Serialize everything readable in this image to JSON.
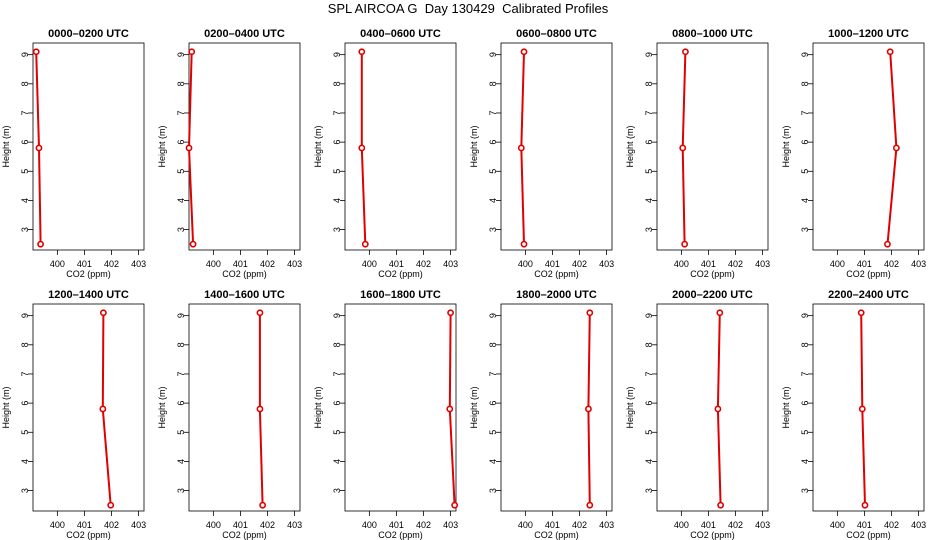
{
  "page": {
    "title": "SPL AIRCOA G  Day 130429  Calibrated Profiles"
  },
  "colors": {
    "profile_line": "#e00000",
    "marker": "#e00000",
    "axis": "#000000"
  },
  "chart_data": [
    {
      "type": "line",
      "title": "0000–0200 UTC",
      "xlabel": "CO2 (ppm)",
      "ylabel": "Height (m)",
      "xlim": [
        399.1,
        403.2
      ],
      "ylim": [
        2.3,
        9.4
      ],
      "xticks": [
        400,
        401,
        402,
        403
      ],
      "yticks": [
        3,
        4,
        5,
        6,
        7,
        8,
        9
      ],
      "x": [
        399.38,
        399.32,
        399.22
      ],
      "y": [
        2.5,
        5.8,
        9.1
      ],
      "grid": false
    },
    {
      "type": "line",
      "title": "0200–0400 UTC",
      "xlabel": "CO2 (ppm)",
      "ylabel": "Height (m)",
      "xlim": [
        399.1,
        403.2
      ],
      "ylim": [
        2.3,
        9.4
      ],
      "xticks": [
        400,
        401,
        402,
        403
      ],
      "yticks": [
        3,
        4,
        5,
        6,
        7,
        8,
        9
      ],
      "x": [
        399.25,
        399.1,
        399.2
      ],
      "y": [
        2.5,
        5.8,
        9.1
      ],
      "grid": false
    },
    {
      "type": "line",
      "title": "0400–0600 UTC",
      "xlabel": "CO2 (ppm)",
      "ylabel": "Height (m)",
      "xlim": [
        399.1,
        403.2
      ],
      "ylim": [
        2.3,
        9.4
      ],
      "xticks": [
        400,
        401,
        402,
        403
      ],
      "yticks": [
        3,
        4,
        5,
        6,
        7,
        8,
        9
      ],
      "x": [
        399.85,
        399.72,
        399.72
      ],
      "y": [
        2.5,
        5.8,
        9.1
      ],
      "grid": false
    },
    {
      "type": "line",
      "title": "0600–0800 UTC",
      "xlabel": "CO2 (ppm)",
      "ylabel": "Height (m)",
      "xlim": [
        399.1,
        403.2
      ],
      "ylim": [
        2.3,
        9.4
      ],
      "xticks": [
        400,
        401,
        402,
        403
      ],
      "yticks": [
        3,
        4,
        5,
        6,
        7,
        8,
        9
      ],
      "x": [
        399.95,
        399.85,
        399.95
      ],
      "y": [
        2.5,
        5.8,
        9.1
      ],
      "grid": false
    },
    {
      "type": "line",
      "title": "0800–1000 UTC",
      "xlabel": "CO2 (ppm)",
      "ylabel": "Height (m)",
      "xlim": [
        399.1,
        403.2
      ],
      "ylim": [
        2.3,
        9.4
      ],
      "xticks": [
        400,
        401,
        402,
        403
      ],
      "yticks": [
        3,
        4,
        5,
        6,
        7,
        8,
        9
      ],
      "x": [
        400.12,
        400.05,
        400.15
      ],
      "y": [
        2.5,
        5.8,
        9.1
      ],
      "grid": false
    },
    {
      "type": "line",
      "title": "1000–1200 UTC",
      "xlabel": "CO2 (ppm)",
      "ylabel": "Height (m)",
      "xlim": [
        399.1,
        403.2
      ],
      "ylim": [
        2.3,
        9.4
      ],
      "xticks": [
        400,
        401,
        402,
        403
      ],
      "yticks": [
        3,
        4,
        5,
        6,
        7,
        8,
        9
      ],
      "x": [
        401.85,
        402.18,
        401.95
      ],
      "y": [
        2.5,
        5.8,
        9.1
      ],
      "grid": false
    },
    {
      "type": "line",
      "title": "1200–1400 UTC",
      "xlabel": "CO2 (ppm)",
      "ylabel": "Height (m)",
      "xlim": [
        399.1,
        403.2
      ],
      "ylim": [
        2.3,
        9.4
      ],
      "xticks": [
        400,
        401,
        402,
        403
      ],
      "yticks": [
        3,
        4,
        5,
        6,
        7,
        8,
        9
      ],
      "x": [
        401.97,
        401.68,
        401.7
      ],
      "y": [
        2.5,
        5.8,
        9.1
      ],
      "grid": false
    },
    {
      "type": "line",
      "title": "1400–1600 UTC",
      "xlabel": "CO2 (ppm)",
      "ylabel": "Height (m)",
      "xlim": [
        399.1,
        403.2
      ],
      "ylim": [
        2.3,
        9.4
      ],
      "xticks": [
        400,
        401,
        402,
        403
      ],
      "yticks": [
        3,
        4,
        5,
        6,
        7,
        8,
        9
      ],
      "x": [
        401.82,
        401.72,
        401.72
      ],
      "y": [
        2.5,
        5.8,
        9.1
      ],
      "grid": false
    },
    {
      "type": "line",
      "title": "1600–1800 UTC",
      "xlabel": "CO2 (ppm)",
      "ylabel": "Height (m)",
      "xlim": [
        399.1,
        403.2
      ],
      "ylim": [
        2.3,
        9.4
      ],
      "xticks": [
        400,
        401,
        402,
        403
      ],
      "yticks": [
        3,
        4,
        5,
        6,
        7,
        8,
        9
      ],
      "x": [
        403.15,
        402.97,
        403.0
      ],
      "y": [
        2.5,
        5.8,
        9.1
      ],
      "grid": false
    },
    {
      "type": "line",
      "title": "1800–2000 UTC",
      "xlabel": "CO2 (ppm)",
      "ylabel": "Height (m)",
      "xlim": [
        399.1,
        403.2
      ],
      "ylim": [
        2.3,
        9.4
      ],
      "xticks": [
        400,
        401,
        402,
        403
      ],
      "yticks": [
        3,
        4,
        5,
        6,
        7,
        8,
        9
      ],
      "x": [
        402.38,
        402.33,
        402.38
      ],
      "y": [
        2.5,
        5.8,
        9.1
      ],
      "grid": false
    },
    {
      "type": "line",
      "title": "2000–2200 UTC",
      "xlabel": "CO2 (ppm)",
      "ylabel": "Height (m)",
      "xlim": [
        399.1,
        403.2
      ],
      "ylim": [
        2.3,
        9.4
      ],
      "xticks": [
        400,
        401,
        402,
        403
      ],
      "yticks": [
        3,
        4,
        5,
        6,
        7,
        8,
        9
      ],
      "x": [
        401.45,
        401.35,
        401.42
      ],
      "y": [
        2.5,
        5.8,
        9.1
      ],
      "grid": false
    },
    {
      "type": "line",
      "title": "2200–2400 UTC",
      "xlabel": "CO2 (ppm)",
      "ylabel": "Height (m)",
      "xlim": [
        399.1,
        403.2
      ],
      "ylim": [
        2.3,
        9.4
      ],
      "xticks": [
        400,
        401,
        402,
        403
      ],
      "yticks": [
        3,
        4,
        5,
        6,
        7,
        8,
        9
      ],
      "x": [
        401.02,
        400.92,
        400.88
      ],
      "y": [
        2.5,
        5.8,
        9.1
      ],
      "grid": false
    }
  ]
}
